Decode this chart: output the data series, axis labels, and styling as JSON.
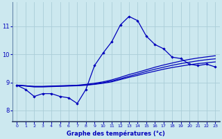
{
  "xlabel": "Graphe des températures (°c)",
  "bg_color": "#cce8ef",
  "grid_color": "#aacdd8",
  "line_color": "#0000bb",
  "spine_color": "#6688aa",
  "x_ticks": [
    0,
    1,
    2,
    3,
    4,
    5,
    6,
    7,
    8,
    9,
    10,
    11,
    12,
    13,
    14,
    15,
    16,
    17,
    18,
    19,
    20,
    21,
    22,
    23
  ],
  "y_ticks": [
    8,
    9,
    10,
    11
  ],
  "ylim": [
    7.6,
    11.85
  ],
  "xlim": [
    -0.5,
    23.5
  ],
  "line1_x": [
    0,
    1,
    2,
    3,
    4,
    5,
    6,
    7,
    8,
    9,
    10,
    11,
    12,
    13,
    14,
    15,
    16,
    17,
    18,
    19,
    20,
    21,
    22,
    23
  ],
  "line1_y": [
    8.9,
    8.75,
    8.5,
    8.6,
    8.6,
    8.5,
    8.45,
    8.25,
    8.75,
    9.6,
    10.05,
    10.45,
    11.05,
    11.35,
    11.2,
    10.65,
    10.35,
    10.2,
    9.9,
    9.85,
    9.65,
    9.6,
    9.65,
    9.55
  ],
  "line2_x": [
    0,
    1,
    2,
    3,
    4,
    5,
    6,
    7,
    8,
    9,
    10,
    11,
    12,
    13,
    14,
    15,
    16,
    17,
    18,
    19,
    20,
    21,
    22,
    23
  ],
  "line2_y": [
    8.9,
    8.87,
    8.84,
    8.84,
    8.85,
    8.86,
    8.87,
    8.88,
    8.9,
    8.93,
    8.97,
    9.02,
    9.1,
    9.18,
    9.25,
    9.33,
    9.4,
    9.47,
    9.53,
    9.58,
    9.63,
    9.67,
    9.7,
    9.73
  ],
  "line3_x": [
    0,
    1,
    2,
    3,
    4,
    5,
    6,
    7,
    8,
    9,
    10,
    11,
    12,
    13,
    14,
    15,
    16,
    17,
    18,
    19,
    20,
    21,
    22,
    23
  ],
  "line3_y": [
    8.9,
    8.88,
    8.85,
    8.85,
    8.86,
    8.87,
    8.88,
    8.89,
    8.91,
    8.94,
    8.99,
    9.05,
    9.13,
    9.22,
    9.3,
    9.39,
    9.47,
    9.54,
    9.61,
    9.67,
    9.72,
    9.77,
    9.81,
    9.84
  ],
  "line4_x": [
    0,
    1,
    2,
    3,
    4,
    5,
    6,
    7,
    8,
    9,
    10,
    11,
    12,
    13,
    14,
    15,
    16,
    17,
    18,
    19,
    20,
    21,
    22,
    23
  ],
  "line4_y": [
    8.9,
    8.88,
    8.86,
    8.86,
    8.87,
    8.88,
    8.89,
    8.9,
    8.93,
    8.97,
    9.02,
    9.09,
    9.18,
    9.28,
    9.36,
    9.45,
    9.54,
    9.62,
    9.69,
    9.76,
    9.82,
    9.87,
    9.91,
    9.95
  ]
}
